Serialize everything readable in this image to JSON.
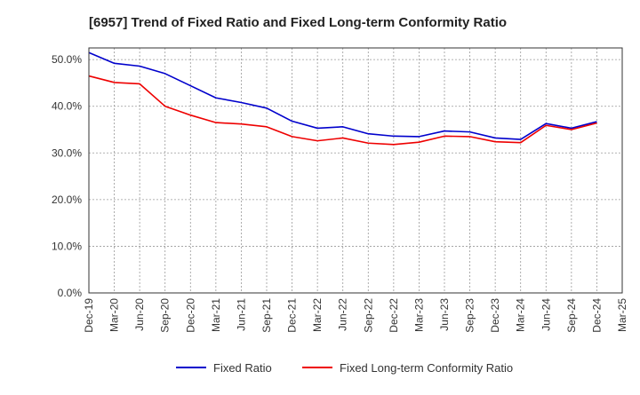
{
  "chart_data": {
    "type": "line",
    "title": "[6957]  Trend of Fixed Ratio and Fixed Long-term Conformity Ratio",
    "xlabel": "",
    "ylabel": "",
    "categories": [
      "Dec-19",
      "Mar-20",
      "Jun-20",
      "Sep-20",
      "Dec-20",
      "Mar-21",
      "Jun-21",
      "Sep-21",
      "Dec-21",
      "Mar-22",
      "Jun-22",
      "Sep-22",
      "Dec-22",
      "Mar-23",
      "Jun-23",
      "Sep-23",
      "Dec-23",
      "Mar-24",
      "Jun-24",
      "Sep-24",
      "Dec-24",
      "Mar-25"
    ],
    "y_ticks": [
      "0.0%",
      "10.0%",
      "20.0%",
      "30.0%",
      "40.0%",
      "50.0%"
    ],
    "ylim": [
      0,
      52.5
    ],
    "grid": true,
    "legend_position": "bottom",
    "series": [
      {
        "name": "Fixed Ratio",
        "color": "#0000cc",
        "values": [
          51.5,
          49.2,
          48.6,
          47.0,
          44.4,
          41.8,
          40.8,
          39.6,
          36.8,
          35.3,
          35.6,
          34.1,
          33.6,
          33.5,
          34.7,
          34.5,
          33.2,
          32.9,
          36.3,
          35.3,
          36.7,
          null
        ]
      },
      {
        "name": "Fixed Long-term Conformity Ratio",
        "color": "#ee0000",
        "values": [
          46.5,
          45.1,
          44.8,
          40.0,
          38.1,
          36.5,
          36.2,
          35.6,
          33.5,
          32.6,
          33.2,
          32.1,
          31.8,
          32.3,
          33.6,
          33.5,
          32.4,
          32.2,
          35.9,
          35.0,
          36.4,
          null
        ]
      }
    ]
  }
}
